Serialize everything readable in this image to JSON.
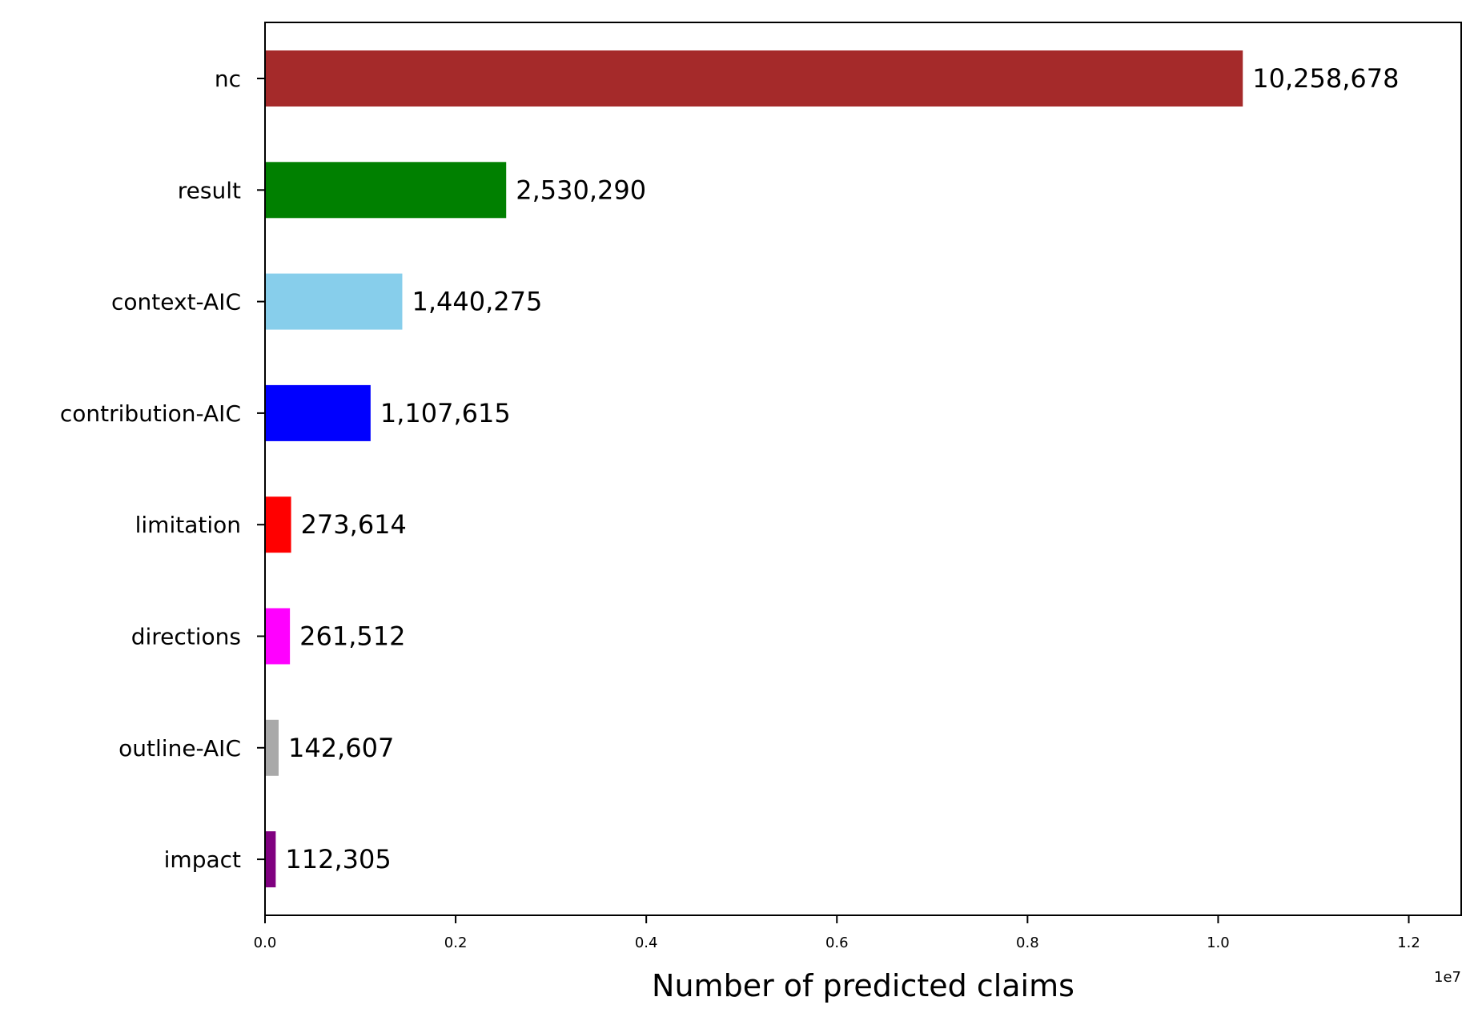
{
  "chart_data": {
    "type": "bar",
    "orientation": "horizontal",
    "categories": [
      "nc",
      "result",
      "context-AIC",
      "contribution-AIC",
      "limitation",
      "directions",
      "outline-AIC",
      "impact"
    ],
    "values": [
      10258678,
      2530290,
      1440275,
      1107615,
      273614,
      261512,
      142607,
      112305
    ],
    "value_labels": [
      "10,258,678",
      "2,530,290",
      "1,440,275",
      "1,107,615",
      "273,614",
      "261,512",
      "142,607",
      "112,305"
    ],
    "colors": [
      "#a52a2a",
      "#008000",
      "#87ceeb",
      "#0000ff",
      "#ff0000",
      "#ff00ff",
      "#a9a9a9",
      "#800080"
    ],
    "xlabel": "Number of predicted claims",
    "ylabel": "",
    "title": "",
    "xlim": [
      0,
      12550000
    ],
    "x_ticks": [
      0,
      2000000,
      4000000,
      6000000,
      8000000,
      10000000,
      12000000
    ],
    "x_tick_labels": [
      "0.0",
      "0.2",
      "0.4",
      "0.6",
      "0.8",
      "1.0",
      "1.2"
    ],
    "x_offset_label": "1e7",
    "grid": false,
    "legend": "none"
  }
}
